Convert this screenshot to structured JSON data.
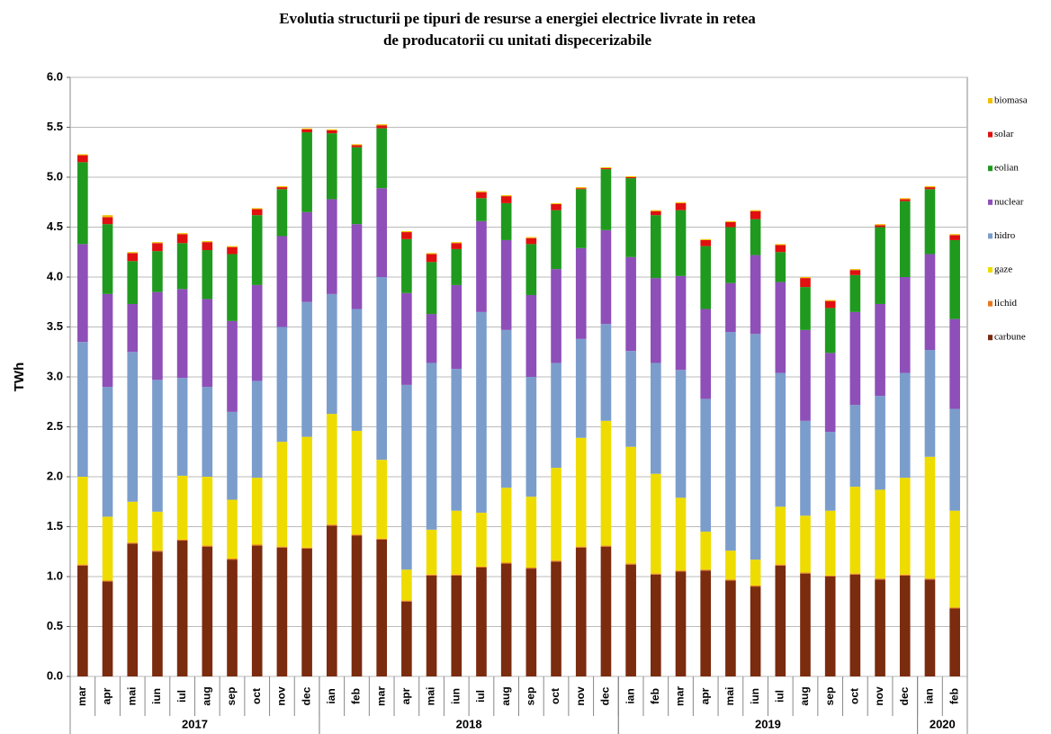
{
  "chart_data": {
    "type": "stacked-bar",
    "title": [
      "Evolutia structurii pe tipuri de resurse a energiei electrice livrate in retea",
      "de producatorii cu unitati dispecerizabile"
    ],
    "y_label": "TWh",
    "years": [
      {
        "label": "2017",
        "months": [
          "mar",
          "apr",
          "mai",
          "iun",
          "iul",
          "aug",
          "sep",
          "oct",
          "nov",
          "dec"
        ]
      },
      {
        "label": "2018",
        "months": [
          "ian",
          "feb",
          "mar",
          "apr",
          "mai",
          "iun",
          "iul",
          "aug",
          "sep",
          "oct",
          "nov",
          "dec"
        ]
      },
      {
        "label": "2019",
        "months": [
          "ian",
          "feb",
          "mar",
          "apr",
          "mai",
          "iun",
          "iul",
          "aug",
          "sep",
          "oct",
          "nov",
          "dec"
        ]
      },
      {
        "label": "2020",
        "months": [
          "ian",
          "feb"
        ]
      }
    ],
    "ylim": [
      0,
      6
    ],
    "yticks": [
      {
        "value": 0,
        "label": "0.0"
      },
      0.5,
      {
        "value": 1,
        "label": "1.0"
      },
      1.5,
      {
        "value": 2,
        "label": "2.0"
      },
      2.5,
      {
        "value": 3,
        "label": "3.0"
      },
      3.5,
      {
        "value": 4,
        "label": "4.0"
      },
      4.5,
      {
        "value": 5,
        "label": "5.0"
      },
      5.5,
      {
        "value": 6,
        "label": "6.0"
      }
    ],
    "grid": true,
    "legend": "right",
    "series": [
      {
        "name": "carbune",
        "color": "#7b2b0e",
        "values": [
          1.11,
          0.95,
          1.33,
          1.25,
          1.36,
          1.3,
          1.17,
          1.31,
          1.29,
          1.28,
          1.51,
          1.41,
          1.37,
          0.75,
          1.01,
          1.01,
          1.09,
          1.13,
          1.08,
          1.15,
          1.29,
          1.3,
          1.12,
          1.02,
          1.05,
          1.06,
          0.96,
          0.9,
          1.11,
          1.03,
          1.0,
          1.02,
          0.97,
          1.01,
          0.97,
          0.68
        ]
      },
      {
        "name": "lichid",
        "color": "#e8781e",
        "values": [
          0.01,
          0.01,
          0.01,
          0.01,
          0.01,
          0.01,
          0.01,
          0.01,
          0.01,
          0.01,
          0.01,
          0.01,
          0.01,
          0.01,
          0.01,
          0.01,
          0.01,
          0.01,
          0.01,
          0.01,
          0.01,
          0.01,
          0.01,
          0.01,
          0.01,
          0.01,
          0.01,
          0.01,
          0.01,
          0.01,
          0.01,
          0.01,
          0.01,
          0.01,
          0.01,
          0.01
        ]
      },
      {
        "name": "gaze",
        "color": "#eedc00",
        "values": [
          0.88,
          0.64,
          0.41,
          0.39,
          0.64,
          0.69,
          0.59,
          0.67,
          1.05,
          1.11,
          1.11,
          1.04,
          0.79,
          0.31,
          0.45,
          0.64,
          0.54,
          0.75,
          0.71,
          0.93,
          1.09,
          1.25,
          1.17,
          1.0,
          0.73,
          0.38,
          0.29,
          0.26,
          0.58,
          0.57,
          0.65,
          0.87,
          0.89,
          0.97,
          1.22,
          0.97
        ]
      },
      {
        "name": "hidro",
        "color": "#7b9dcc",
        "values": [
          1.35,
          1.3,
          1.5,
          1.32,
          0.98,
          0.9,
          0.88,
          0.97,
          1.15,
          1.35,
          1.2,
          1.22,
          1.83,
          1.85,
          1.67,
          1.42,
          2.01,
          1.58,
          1.2,
          1.05,
          0.99,
          0.97,
          0.96,
          1.11,
          1.28,
          1.33,
          2.19,
          2.26,
          1.34,
          0.95,
          0.79,
          0.82,
          0.94,
          1.05,
          1.07,
          1.02
        ]
      },
      {
        "name": "nuclear",
        "color": "#8e4fb8",
        "values": [
          0.98,
          0.93,
          0.48,
          0.88,
          0.89,
          0.88,
          0.91,
          0.96,
          0.91,
          0.9,
          0.95,
          0.85,
          0.89,
          0.92,
          0.49,
          0.84,
          0.91,
          0.9,
          0.82,
          0.94,
          0.91,
          0.94,
          0.94,
          0.85,
          0.94,
          0.9,
          0.49,
          0.79,
          0.91,
          0.91,
          0.79,
          0.93,
          0.92,
          0.96,
          0.96,
          0.9
        ]
      },
      {
        "name": "eolian",
        "color": "#1f9a1f",
        "values": [
          0.82,
          0.7,
          0.43,
          0.41,
          0.46,
          0.49,
          0.67,
          0.7,
          0.47,
          0.8,
          0.66,
          0.77,
          0.6,
          0.54,
          0.52,
          0.36,
          0.23,
          0.37,
          0.51,
          0.59,
          0.59,
          0.61,
          0.79,
          0.63,
          0.66,
          0.63,
          0.56,
          0.36,
          0.3,
          0.43,
          0.45,
          0.37,
          0.77,
          0.76,
          0.65,
          0.79
        ]
      },
      {
        "name": "solar",
        "color": "#e01010",
        "values": [
          0.07,
          0.07,
          0.08,
          0.08,
          0.09,
          0.08,
          0.07,
          0.06,
          0.02,
          0.03,
          0.03,
          0.02,
          0.03,
          0.07,
          0.08,
          0.06,
          0.06,
          0.07,
          0.06,
          0.06,
          0.01,
          0.01,
          0.01,
          0.04,
          0.07,
          0.06,
          0.05,
          0.08,
          0.07,
          0.09,
          0.07,
          0.05,
          0.02,
          0.02,
          0.02,
          0.05
        ]
      },
      {
        "name": "biomasa",
        "color": "#f0c000",
        "values": [
          0.01,
          0.02,
          0.01,
          0.01,
          0.01,
          0.01,
          0.01,
          0.01,
          0.01,
          0.01,
          0.01,
          0.01,
          0.01,
          0.01,
          0.01,
          0.01,
          0.01,
          0.01,
          0.01,
          0.01,
          0.01,
          0.01,
          0.01,
          0.01,
          0.01,
          0.01,
          0.01,
          0.01,
          0.01,
          0.01,
          0.01,
          0.01,
          0.01,
          0.01,
          0.01,
          0.01
        ]
      }
    ]
  }
}
